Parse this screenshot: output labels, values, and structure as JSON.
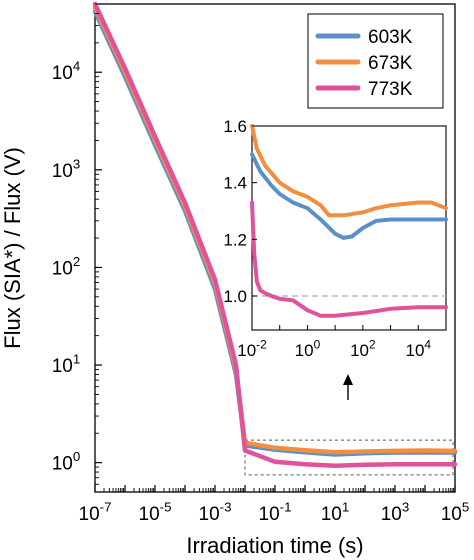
{
  "chart_data": [
    {
      "type": "line",
      "xlabel": "Irradiation time (s)",
      "ylabel": "Flux (SIA*) / Flux (V)",
      "xscale": "log",
      "yscale": "log",
      "xlim": [
        1e-07,
        100000.0
      ],
      "ylim": [
        0.5,
        50000
      ],
      "x_ticks": [
        {
          "base": "10",
          "exp": "-7"
        },
        {
          "base": "10",
          "exp": "-5"
        },
        {
          "base": "10",
          "exp": "-3"
        },
        {
          "base": "10",
          "exp": "-1"
        },
        {
          "base": "10",
          "exp": "1"
        },
        {
          "base": "10",
          "exp": "3"
        },
        {
          "base": "10",
          "exp": "5"
        }
      ],
      "y_ticks": [
        {
          "base": "10",
          "exp": "0"
        },
        {
          "base": "10",
          "exp": "1"
        },
        {
          "base": "10",
          "exp": "2"
        },
        {
          "base": "10",
          "exp": "3"
        },
        {
          "base": "10",
          "exp": "4"
        }
      ],
      "legend_position": "top-right",
      "series": [
        {
          "name": "603K",
          "color": "#5B8FC9",
          "x": [
            1e-07,
            1e-06,
            1e-05,
            0.0001,
            0.001,
            0.005,
            0.01,
            0.1,
            1,
            10,
            100,
            1000,
            10000,
            100000
          ],
          "y": [
            42000,
            9000,
            1800,
            380,
            60,
            8,
            1.5,
            1.36,
            1.28,
            1.21,
            1.25,
            1.27,
            1.27,
            1.27
          ]
        },
        {
          "name": "673K",
          "color": "#F28E3F",
          "x": [
            1e-07,
            1e-06,
            1e-05,
            0.0001,
            0.001,
            0.005,
            0.01,
            0.1,
            1,
            10,
            100,
            1000,
            10000,
            100000
          ],
          "y": [
            46000,
            10000,
            2000,
            420,
            68,
            9,
            1.6,
            1.42,
            1.34,
            1.28,
            1.3,
            1.32,
            1.33,
            1.32
          ]
        },
        {
          "name": "773K",
          "color": "#E0529C",
          "x": [
            1e-07,
            1e-06,
            1e-05,
            0.0001,
            0.001,
            0.005,
            0.01,
            0.1,
            1,
            10,
            100,
            1000,
            10000,
            100000
          ],
          "y": [
            50000,
            11000,
            2200,
            460,
            75,
            10,
            1.33,
            1.02,
            0.96,
            0.93,
            0.95,
            0.96,
            0.96,
            0.96
          ]
        }
      ]
    },
    {
      "type": "line",
      "xscale": "log",
      "xlim": [
        0.01,
        100000
      ],
      "ylim": [
        0.88,
        1.6
      ],
      "x_ticks": [
        {
          "base": "10",
          "exp": "-2"
        },
        {
          "base": "10",
          "exp": "0"
        },
        {
          "base": "10",
          "exp": "2"
        },
        {
          "base": "10",
          "exp": "4"
        }
      ],
      "y_ticks": [
        "1.0",
        "1.2",
        "1.4",
        "1.6"
      ],
      "reference_line_y": 1.0,
      "series": [
        {
          "name": "603K",
          "color": "#5B8FC9",
          "x": [
            0.01,
            0.02,
            0.05,
            0.1,
            0.3,
            1,
            3,
            10,
            20,
            40,
            100,
            300,
            1000,
            10000,
            100000
          ],
          "y": [
            1.5,
            1.44,
            1.39,
            1.36,
            1.33,
            1.31,
            1.27,
            1.22,
            1.205,
            1.21,
            1.24,
            1.265,
            1.27,
            1.27,
            1.27
          ]
        },
        {
          "name": "673K",
          "color": "#F28E3F",
          "x": [
            0.01,
            0.015,
            0.03,
            0.1,
            0.3,
            1,
            3,
            6,
            20,
            100,
            300,
            1000,
            10000,
            30000,
            100000
          ],
          "y": [
            1.6,
            1.52,
            1.46,
            1.4,
            1.37,
            1.35,
            1.32,
            1.285,
            1.285,
            1.295,
            1.31,
            1.32,
            1.33,
            1.33,
            1.31
          ]
        },
        {
          "name": "773K",
          "color": "#E0529C",
          "x": [
            0.01,
            0.012,
            0.015,
            0.02,
            0.03,
            0.05,
            0.1,
            0.3,
            1,
            3,
            10,
            100,
            1000,
            10000,
            100000
          ],
          "y": [
            1.33,
            1.15,
            1.05,
            1.02,
            1.01,
            1.0,
            0.99,
            0.985,
            0.95,
            0.93,
            0.93,
            0.94,
            0.955,
            0.96,
            0.96
          ]
        }
      ]
    }
  ]
}
